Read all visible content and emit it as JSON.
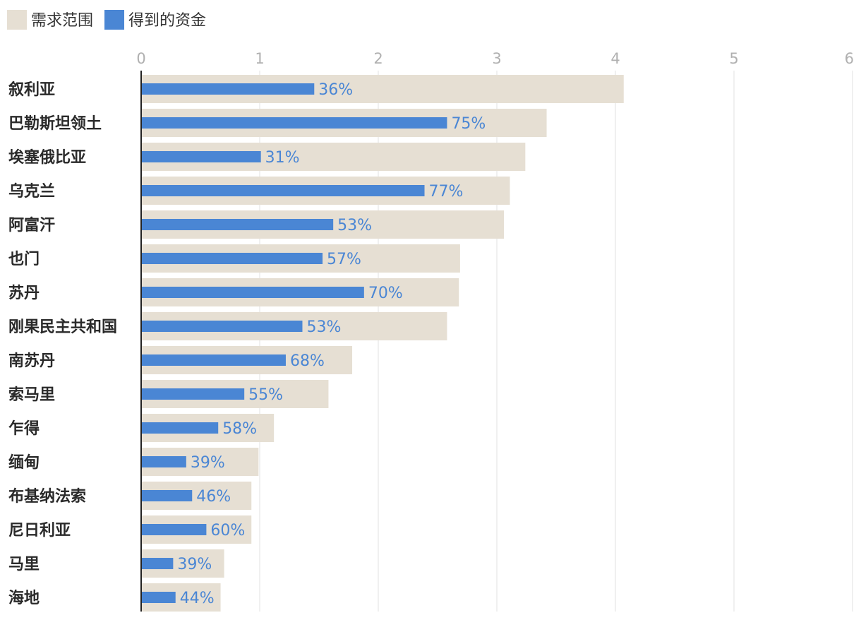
{
  "chart_data": {
    "type": "bar",
    "orientation": "horizontal",
    "legend_position": "top-left",
    "grid": true,
    "xlim": [
      0,
      6
    ],
    "x_ticks": [
      "0",
      "1",
      "2",
      "3",
      "4",
      "5",
      "6"
    ],
    "legend": [
      {
        "name": "需求范围",
        "color": "#e6dfd3"
      },
      {
        "name": "得到的资金",
        "color": "#4a86d4"
      }
    ],
    "categories": [
      "叙利亚",
      "巴勒斯坦领土",
      "埃塞俄比亚",
      "乌克兰",
      "阿富汗",
      "也门",
      "苏丹",
      "刚果民主共和国",
      "南苏丹",
      "索马里",
      "乍得",
      "缅甸",
      "布基纳法索",
      "尼日利亚",
      "马里",
      "海地"
    ],
    "series": [
      {
        "name": "需求范围",
        "values": [
          4.07,
          3.42,
          3.24,
          3.11,
          3.06,
          2.69,
          2.68,
          2.58,
          1.78,
          1.58,
          1.12,
          0.99,
          0.93,
          0.93,
          0.7,
          0.67
        ]
      },
      {
        "name": "得到的资金",
        "values": [
          1.46,
          2.58,
          1.01,
          2.39,
          1.62,
          1.53,
          1.88,
          1.36,
          1.22,
          0.87,
          0.65,
          0.38,
          0.43,
          0.55,
          0.27,
          0.29
        ]
      }
    ],
    "bar_labels": [
      "36%",
      "75%",
      "31%",
      "77%",
      "53%",
      "57%",
      "70%",
      "53%",
      "68%",
      "55%",
      "58%",
      "39%",
      "46%",
      "60%",
      "39%",
      "44%"
    ]
  }
}
